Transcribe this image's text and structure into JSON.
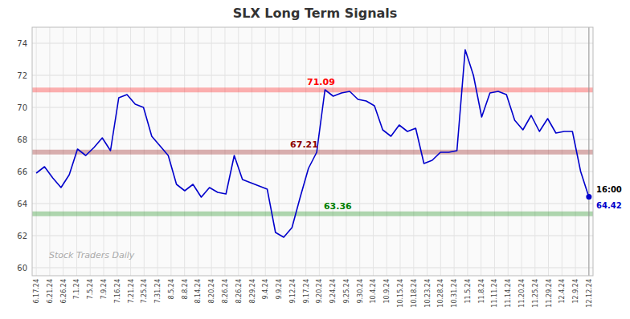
{
  "chart_data": {
    "type": "line",
    "title": "SLX Long Term Signals",
    "x": [
      0,
      1,
      2,
      3,
      4,
      5,
      6,
      7,
      8,
      9,
      10,
      11,
      12,
      13,
      14,
      15,
      16,
      17,
      18,
      19,
      20,
      21,
      22,
      23,
      24,
      25,
      26,
      27,
      28,
      29,
      30,
      31,
      32,
      33,
      34,
      35,
      36,
      37,
      38,
      39,
      40,
      41,
      42,
      43,
      44,
      45,
      46,
      47,
      48,
      49,
      50,
      51,
      52,
      53,
      54,
      55,
      56,
      57,
      58,
      59,
      60,
      61,
      62,
      63,
      64,
      65,
      66,
      67
    ],
    "values": [
      65.9,
      66.3,
      65.6,
      65.0,
      65.8,
      67.4,
      67.0,
      67.5,
      68.1,
      67.3,
      70.6,
      70.8,
      70.2,
      70.0,
      68.2,
      67.6,
      67.0,
      65.2,
      64.8,
      65.2,
      64.4,
      65.0,
      64.7,
      64.6,
      67.0,
      65.5,
      65.3,
      65.1,
      64.9,
      62.2,
      61.9,
      62.5,
      64.4,
      66.2,
      67.2,
      71.1,
      70.7,
      70.9,
      71.0,
      70.5,
      70.4,
      70.1,
      68.6,
      68.2,
      68.9,
      68.5,
      68.7,
      66.5,
      66.7,
      67.2,
      67.2,
      67.3,
      73.6,
      72.0,
      69.4,
      70.9,
      71.0,
      70.8,
      69.2,
      68.6,
      69.5,
      68.5,
      69.3,
      68.4,
      68.5,
      68.5,
      66.0,
      64.4
    ],
    "color": "#0000cc",
    "xlim": [
      -0.5,
      67.5
    ],
    "xticks": [
      {
        "value": 0,
        "label": "6.17.24"
      },
      {
        "value": 1.6341,
        "label": "6.21.24"
      },
      {
        "value": 3.2683,
        "label": "6.26.24"
      },
      {
        "value": 4.9024,
        "label": "7.1.24"
      },
      {
        "value": 6.5366,
        "label": "7.5.24"
      },
      {
        "value": 8.1707,
        "label": "7.9.24"
      },
      {
        "value": 9.8049,
        "label": "7.16.24"
      },
      {
        "value": 11.439,
        "label": "7.21.24"
      },
      {
        "value": 13.0732,
        "label": "7.25.24"
      },
      {
        "value": 14.7073,
        "label": "7.31.24"
      },
      {
        "value": 16.3415,
        "label": "8.5.24"
      },
      {
        "value": 17.9756,
        "label": "8.8.24"
      },
      {
        "value": 19.6098,
        "label": "8.14.24"
      },
      {
        "value": 21.2439,
        "label": "8.20.24"
      },
      {
        "value": 22.878,
        "label": "8.26.24"
      },
      {
        "value": 24.5122,
        "label": "8.26.24"
      },
      {
        "value": 26.1463,
        "label": "8.29.24"
      },
      {
        "value": 27.7805,
        "label": "9.4.24"
      },
      {
        "value": 29.4146,
        "label": "9.9.24"
      },
      {
        "value": 31.0488,
        "label": "9.12.24"
      },
      {
        "value": 32.6829,
        "label": "9.17.24"
      },
      {
        "value": 34.3171,
        "label": "9.20.24"
      },
      {
        "value": 35.9512,
        "label": "9.24.24"
      },
      {
        "value": 37.5854,
        "label": "9.25.24"
      },
      {
        "value": 39.2195,
        "label": "9.30.24"
      },
      {
        "value": 40.8537,
        "label": "10.4.24"
      },
      {
        "value": 42.4878,
        "label": "10.9.24"
      },
      {
        "value": 44.122,
        "label": "10.15.24"
      },
      {
        "value": 45.7561,
        "label": "10.18.24"
      },
      {
        "value": 47.3902,
        "label": "10.23.24"
      },
      {
        "value": 49.0244,
        "label": "10.28.24"
      },
      {
        "value": 50.6585,
        "label": "10.31.24"
      },
      {
        "value": 52.2927,
        "label": "11.5.24"
      },
      {
        "value": 53.9268,
        "label": "11.8.24"
      },
      {
        "value": 55.561,
        "label": "11.11.24"
      },
      {
        "value": 57.1951,
        "label": "11.14.24"
      },
      {
        "value": 58.8293,
        "label": "11.20.24"
      },
      {
        "value": 60.4634,
        "label": "11.25.24"
      },
      {
        "value": 62.0976,
        "label": "11.29.24"
      },
      {
        "value": 63.7317,
        "label": "12.4.24"
      },
      {
        "value": 65.3659,
        "label": "12.9.24"
      },
      {
        "value": 67,
        "label": "12.12.24"
      }
    ],
    "ylim": [
      59.5,
      75.0
    ],
    "yticks": [
      60,
      62,
      64,
      66,
      68,
      70,
      72,
      74
    ],
    "grid": true,
    "annotations": [
      {
        "text": "71.09",
        "y": 71.09,
        "color": "red"
      },
      {
        "text": "67.21",
        "y": 67.21,
        "color": "#8b0000"
      },
      {
        "text": "63.36",
        "y": 63.36,
        "color": "green"
      },
      {
        "text": "16:00",
        "x": 67
      },
      {
        "text": "64.42",
        "x": 67,
        "y": 64.42,
        "color": "#0000cc",
        "marker": "circle"
      },
      {
        "text": "Stock Traders Daily"
      }
    ]
  }
}
